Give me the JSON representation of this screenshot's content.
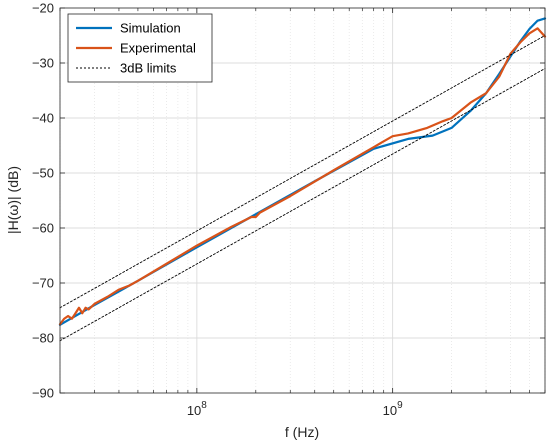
{
  "chart_data": {
    "type": "line",
    "xlabel": "f (Hz)",
    "ylabel": "|H(ω)| (dB)",
    "x_scale": "log",
    "xlim": [
      20000000.0,
      6000000000.0
    ],
    "ylim": [
      -90,
      -20
    ],
    "x_ticks": [
      {
        "value": 100000000.0,
        "base": "10",
        "exp": "8"
      },
      {
        "value": 1000000000.0,
        "base": "10",
        "exp": "9"
      }
    ],
    "y_ticks": [
      -90,
      -80,
      -70,
      -60,
      -50,
      -40,
      -30,
      -20
    ],
    "grid": true,
    "legend_position": "top-left",
    "series": [
      {
        "name": "Simulation",
        "color": "#0072BD",
        "style": "solid",
        "x": [
          20000000.0,
          30000000.0,
          50000000.0,
          100000000.0,
          200000000.0,
          400000000.0,
          800000000.0,
          1200000000.0,
          1600000000.0,
          2000000000.0,
          2500000000.0,
          3000000000.0,
          3500000000.0,
          4000000000.0,
          4500000000.0,
          5000000000.0,
          5500000000.0,
          6000000000.0
        ],
        "y": [
          -77.6,
          -74,
          -69.6,
          -63.5,
          -57.5,
          -51.5,
          -45.6,
          -43.8,
          -43.2,
          -41.8,
          -38.7,
          -35.5,
          -32.0,
          -28.8,
          -26.0,
          -23.8,
          -22.3,
          -21.9
        ]
      },
      {
        "name": "Experimental",
        "color": "#D95319",
        "style": "solid",
        "x": [
          20000000.0,
          21000000.0,
          22000000.0,
          23000000.0,
          24000000.0,
          25000000.0,
          26000000.0,
          27000000.0,
          28000000.0,
          30000000.0,
          35000000.0,
          40000000.0,
          45000000.0,
          50000000.0,
          70000000.0,
          100000000.0,
          150000000.0,
          190000000.0,
          200000000.0,
          210000000.0,
          300000000.0,
          500000000.0,
          800000000.0,
          1000000000.0,
          1200000000.0,
          1500000000.0,
          1800000000.0,
          2000000000.0,
          2500000000.0,
          3000000000.0,
          3500000000.0,
          4000000000.0,
          4500000000.0,
          5000000000.0,
          5500000000.0,
          6000000000.0
        ],
        "y": [
          -77.5,
          -76.5,
          -76.0,
          -76.5,
          -75.5,
          -74.5,
          -75.5,
          -74.5,
          -74.8,
          -73.8,
          -72.5,
          -71.2,
          -70.5,
          -69.6,
          -66.5,
          -63.2,
          -59.8,
          -58.0,
          -58.0,
          -57.2,
          -54.2,
          -49.5,
          -45.3,
          -43.3,
          -42.8,
          -41.8,
          -40.6,
          -40.0,
          -37.2,
          -35.5,
          -32.5,
          -28.3,
          -26.2,
          -24.6,
          -23.7,
          -25.2
        ]
      },
      {
        "name": "3dB limits",
        "color": "#000000",
        "style": "dotted",
        "x": [
          20000000.0,
          6000000000.0
        ],
        "y": [
          -74.5,
          -25.0
        ]
      },
      {
        "name": "",
        "color": "#000000",
        "style": "dotted",
        "x": [
          20000000.0,
          6000000000.0
        ],
        "y": [
          -80.5,
          -31.0
        ]
      }
    ]
  }
}
